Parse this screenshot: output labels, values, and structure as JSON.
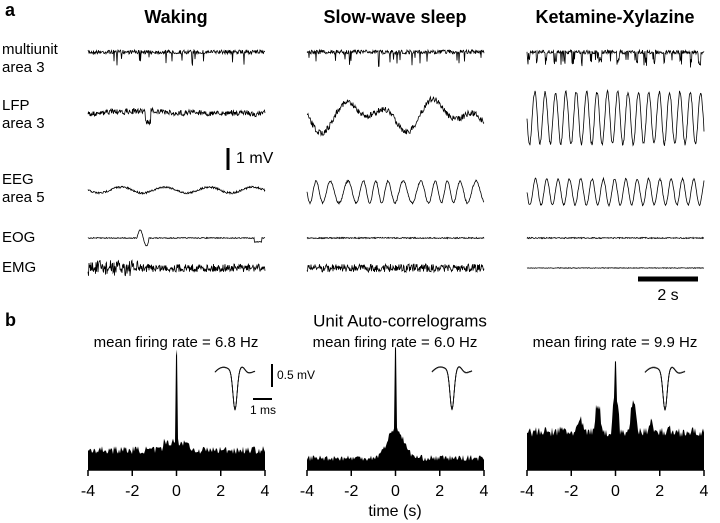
{
  "panel_a": {
    "label": "a",
    "columns": [
      "Waking",
      "Slow-wave sleep",
      "Ketamine-Xylazine"
    ],
    "rows": [
      [
        "multiunit",
        "area 3"
      ],
      [
        "LFP",
        "area 3"
      ],
      [
        "EEG",
        "area 5"
      ],
      [
        "EOG"
      ],
      [
        "EMG"
      ]
    ],
    "voltage_scale": "1 mV",
    "time_scale": "2 s"
  },
  "panel_b": {
    "label": "b",
    "title": "Unit Auto-correlograms",
    "rates": [
      "mean firing rate = 6.8 Hz",
      "mean firing rate = 6.0 Hz",
      "mean firing rate = 9.9 Hz"
    ],
    "xlim": [
      -4,
      4
    ],
    "xticks": [
      -4,
      -2,
      0,
      2,
      4
    ],
    "xlabel": "time (s)",
    "waveform_voltage_scale": "0.5 mV",
    "waveform_time_scale": "1 ms"
  }
}
